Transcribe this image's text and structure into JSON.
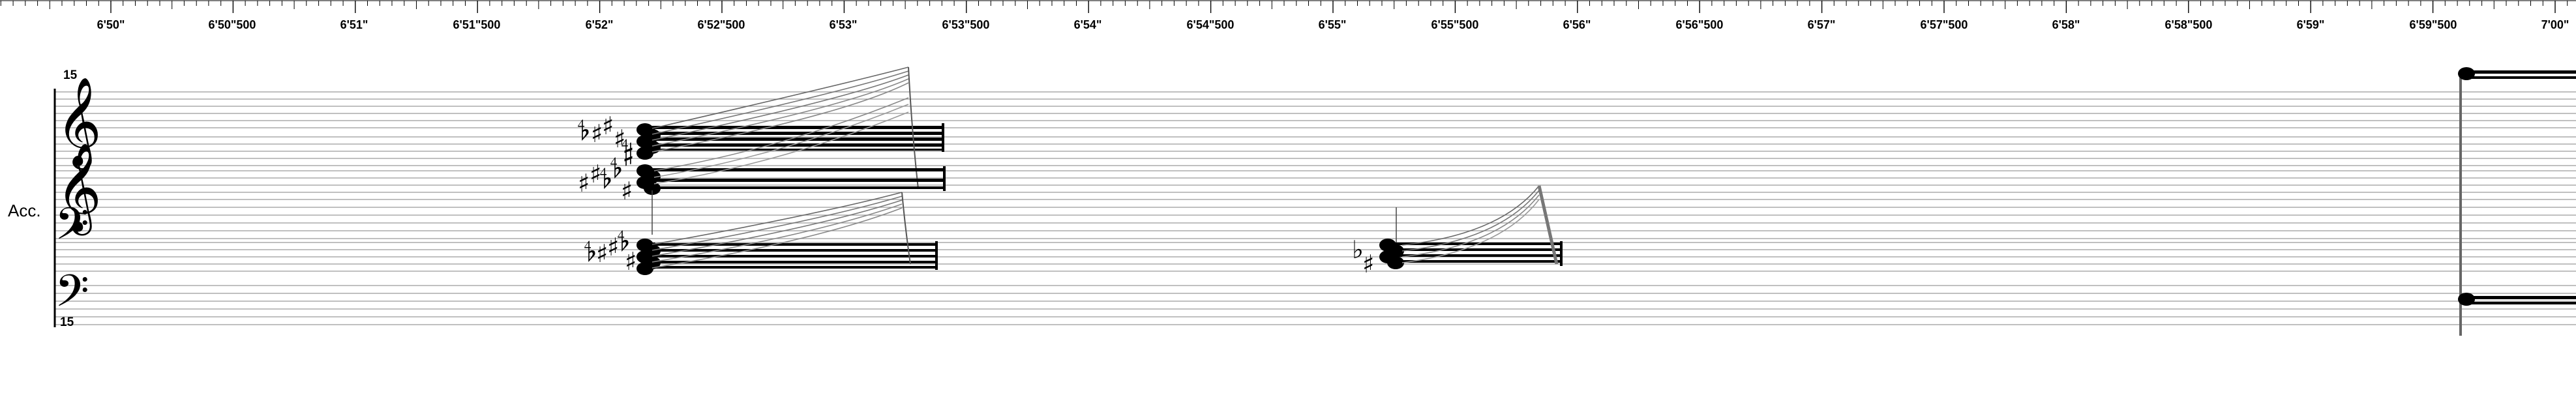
{
  "timeline": {
    "labels": [
      "6'50\"",
      "6'50\"500",
      "6'51\"",
      "6'51\"500",
      "6'52\"",
      "6'52\"500",
      "6'53\"",
      "6'53\"500",
      "6'54\"",
      "6'54\"500",
      "6'55\"",
      "6'55\"500",
      "6'56\"",
      "6'56\"500",
      "6'57\"",
      "6'57\"500",
      "6'58\"",
      "6'58\"500",
      "6'59\"",
      "6'59\"500",
      "7'00\""
    ]
  },
  "staff": {
    "instrument_label": "Acc.",
    "ottava_top": "15",
    "ottava_bottom": "15",
    "clefs": {
      "treble": "𝄞",
      "bass": "𝄢"
    }
  },
  "glyphs": {
    "sharp": "♯",
    "flat": "♭",
    "quarter_sharp": "𝄲",
    "quarter_flat": "𝄳"
  },
  "colors": {
    "ink": "#000000",
    "staff_line": "#9a9a9a",
    "glissando": "#8a8a8a"
  }
}
